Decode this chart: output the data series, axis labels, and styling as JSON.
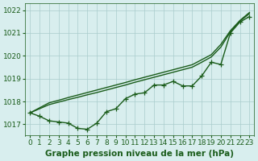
{
  "title": "Graphe pression niveau de la mer (hPa)",
  "bg_color": "#d8eeee",
  "grid_color": "#aacccc",
  "line_color": "#1a5c1a",
  "xlim": [
    -0.5,
    23.5
  ],
  "ylim": [
    1016.5,
    1022.3
  ],
  "yticks": [
    1017,
    1018,
    1019,
    1020,
    1021,
    1022
  ],
  "xticks": [
    0,
    1,
    2,
    3,
    4,
    5,
    6,
    7,
    8,
    9,
    10,
    11,
    12,
    13,
    14,
    15,
    16,
    17,
    18,
    19,
    20,
    21,
    22,
    23
  ],
  "series_main": [
    1017.5,
    1017.35,
    1017.15,
    1017.1,
    1017.05,
    1016.82,
    1016.78,
    1017.05,
    1017.55,
    1017.68,
    1018.12,
    1018.32,
    1018.38,
    1018.72,
    1018.72,
    1018.88,
    1018.68,
    1018.68,
    1019.12,
    1019.72,
    1019.62,
    1021.0,
    1021.48,
    1021.72
  ],
  "series_linear1": [
    1017.5,
    1017.72,
    1017.94,
    1018.05,
    1018.17,
    1018.28,
    1018.39,
    1018.5,
    1018.61,
    1018.72,
    1018.83,
    1018.95,
    1019.06,
    1019.17,
    1019.28,
    1019.39,
    1019.5,
    1019.61,
    1019.83,
    1020.05,
    1020.5,
    1021.1,
    1021.55,
    1021.9
  ],
  "series_linear2": [
    1017.5,
    1017.68,
    1017.86,
    1017.97,
    1018.08,
    1018.18,
    1018.29,
    1018.39,
    1018.5,
    1018.61,
    1018.72,
    1018.84,
    1018.95,
    1019.06,
    1019.17,
    1019.28,
    1019.39,
    1019.5,
    1019.72,
    1019.95,
    1020.38,
    1021.05,
    1021.52,
    1021.85
  ],
  "marker_size": 3,
  "line_width": 1.0,
  "tick_fontsize": 6.5,
  "title_fontsize": 7.5
}
